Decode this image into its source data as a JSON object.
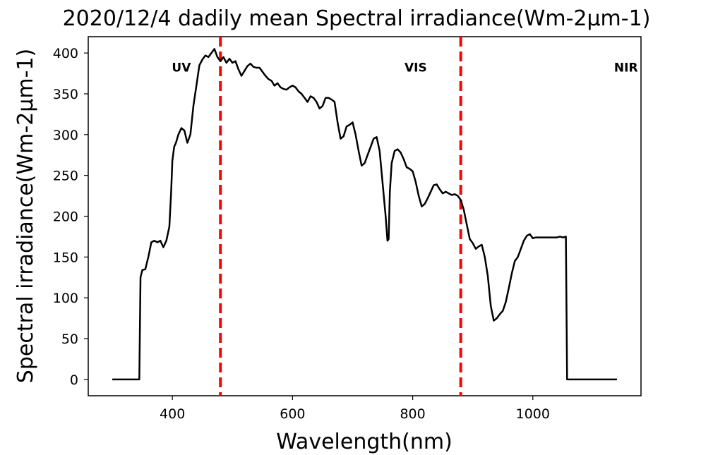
{
  "chart_data": {
    "type": "line",
    "title": "2020/12/4 dadily mean Spectral irradiance(Wm-2µm-1)",
    "xlabel": "Wavelength(nm)",
    "ylabel": "Spectral irradiance(Wm-2µm-1)",
    "xlim": [
      260,
      1180
    ],
    "ylim": [
      -20,
      420
    ],
    "xticks": [
      400,
      600,
      800,
      1000
    ],
    "yticks": [
      0,
      50,
      100,
      150,
      200,
      250,
      300,
      350,
      400
    ],
    "grid": false,
    "line_color": "#000000",
    "series": [
      {
        "x": [
          300,
          345,
          347,
          350,
          355,
          360,
          365,
          370,
          375,
          380,
          385,
          390,
          395,
          398,
          400,
          403,
          406,
          410,
          415,
          420,
          425,
          430,
          435,
          440,
          445,
          450,
          455,
          460,
          465,
          470,
          475,
          480,
          485,
          490,
          495,
          500,
          505,
          510,
          515,
          520,
          525,
          530,
          535,
          540,
          545,
          550,
          555,
          560,
          565,
          570,
          575,
          580,
          585,
          590,
          595,
          600,
          605,
          610,
          615,
          620,
          625,
          630,
          635,
          640,
          645,
          650,
          655,
          660,
          665,
          670,
          675,
          680,
          685,
          690,
          695,
          700,
          705,
          710,
          715,
          720,
          725,
          730,
          735,
          740,
          745,
          750,
          755,
          758,
          760,
          762,
          765,
          770,
          775,
          780,
          785,
          790,
          795,
          800,
          805,
          810,
          815,
          820,
          825,
          830,
          835,
          840,
          845,
          850,
          855,
          860,
          865,
          870,
          875,
          880,
          885,
          890,
          895,
          900,
          905,
          910,
          915,
          920,
          925,
          930,
          935,
          940,
          945,
          950,
          955,
          960,
          965,
          970,
          975,
          980,
          985,
          990,
          995,
          1000,
          1005,
          1010,
          1020,
          1030,
          1040,
          1045,
          1050,
          1055,
          1057,
          1060,
          1140
        ],
        "y": [
          0,
          0,
          125,
          134,
          135,
          150,
          168,
          170,
          168,
          170,
          162,
          170,
          187,
          230,
          268,
          285,
          290,
          300,
          308,
          305,
          290,
          300,
          335,
          360,
          385,
          392,
          397,
          395,
          400,
          405,
          395,
          390,
          395,
          388,
          393,
          388,
          390,
          380,
          372,
          378,
          384,
          387,
          383,
          382,
          382,
          377,
          372,
          368,
          366,
          360,
          363,
          358,
          356,
          355,
          358,
          360,
          358,
          353,
          350,
          345,
          340,
          347,
          345,
          340,
          332,
          335,
          345,
          345,
          343,
          340,
          315,
          295,
          298,
          310,
          312,
          315,
          300,
          280,
          262,
          265,
          275,
          285,
          295,
          297,
          280,
          240,
          200,
          170,
          172,
          230,
          265,
          280,
          282,
          278,
          270,
          260,
          258,
          255,
          242,
          225,
          212,
          215,
          222,
          230,
          238,
          239,
          233,
          228,
          230,
          228,
          226,
          227,
          225,
          220,
          208,
          190,
          172,
          167,
          160,
          163,
          165,
          150,
          127,
          90,
          72,
          75,
          80,
          84,
          95,
          112,
          130,
          145,
          150,
          160,
          170,
          176,
          178,
          173,
          174,
          174,
          174,
          174,
          174,
          175,
          174,
          175,
          0,
          0,
          0
        ]
      }
    ],
    "vlines": [
      {
        "x": 480,
        "color": "#ff0000",
        "style": "dashed"
      },
      {
        "x": 880,
        "color": "#ff0000",
        "style": "dashed"
      }
    ],
    "annotations": [
      {
        "text": "UV",
        "x": 415,
        "y": 385
      },
      {
        "text": "VIS",
        "x": 805,
        "y": 385
      },
      {
        "text": "NIR",
        "x": 1155,
        "y": 385
      }
    ]
  }
}
